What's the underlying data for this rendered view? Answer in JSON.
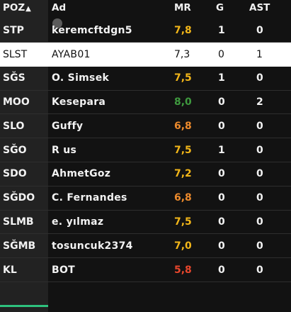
{
  "header": {
    "pos": "POZ",
    "sort_icon": "▲",
    "name": "Ad",
    "mr": "MR",
    "g": "G",
    "ast": "AST"
  },
  "colors": {
    "yellow": "#f2b619",
    "orange": "#ec8a2c",
    "green": "#3f9a3f",
    "red": "#e6462c",
    "highlight_bg": "#ffffff",
    "accent": "#2ec27e"
  },
  "rows": [
    {
      "pos": "STP",
      "name": "keremcftdgn5",
      "mr": "7,8",
      "mr_color": "#f2b619",
      "g": "1",
      "ast": "0"
    },
    {
      "pos": "SLST",
      "name": "AYAB01",
      "mr": "7,3",
      "mr_color": "#111111",
      "g": "0",
      "ast": "1",
      "highlight": true
    },
    {
      "pos": "SĞS",
      "name": "O. Simsek",
      "mr": "7,5",
      "mr_color": "#f2b619",
      "g": "1",
      "ast": "0"
    },
    {
      "pos": "MOO",
      "name": "Kesepara",
      "mr": "8,0",
      "mr_color": "#3f9a3f",
      "g": "0",
      "ast": "2"
    },
    {
      "pos": "SLO",
      "name": "Guffy",
      "mr": "6,8",
      "mr_color": "#ec8a2c",
      "g": "0",
      "ast": "0"
    },
    {
      "pos": "SĞO",
      "name": "R us",
      "mr": "7,5",
      "mr_color": "#f2b619",
      "g": "1",
      "ast": "0"
    },
    {
      "pos": "SDO",
      "name": "AhmetGoz",
      "mr": "7,2",
      "mr_color": "#f2b619",
      "g": "0",
      "ast": "0"
    },
    {
      "pos": "SĞDO",
      "name": "C. Fernandes",
      "mr": "6,8",
      "mr_color": "#ec8a2c",
      "g": "0",
      "ast": "0"
    },
    {
      "pos": "SLMB",
      "name": "e. yılmaz",
      "mr": "7,5",
      "mr_color": "#f2b619",
      "g": "0",
      "ast": "0"
    },
    {
      "pos": "SĞMB",
      "name": "tosuncuk2374",
      "mr": "7,0",
      "mr_color": "#f2b619",
      "g": "0",
      "ast": "0"
    },
    {
      "pos": "KL",
      "name": "BOT",
      "mr": "5,8",
      "mr_color": "#e6462c",
      "g": "0",
      "ast": "0"
    }
  ]
}
